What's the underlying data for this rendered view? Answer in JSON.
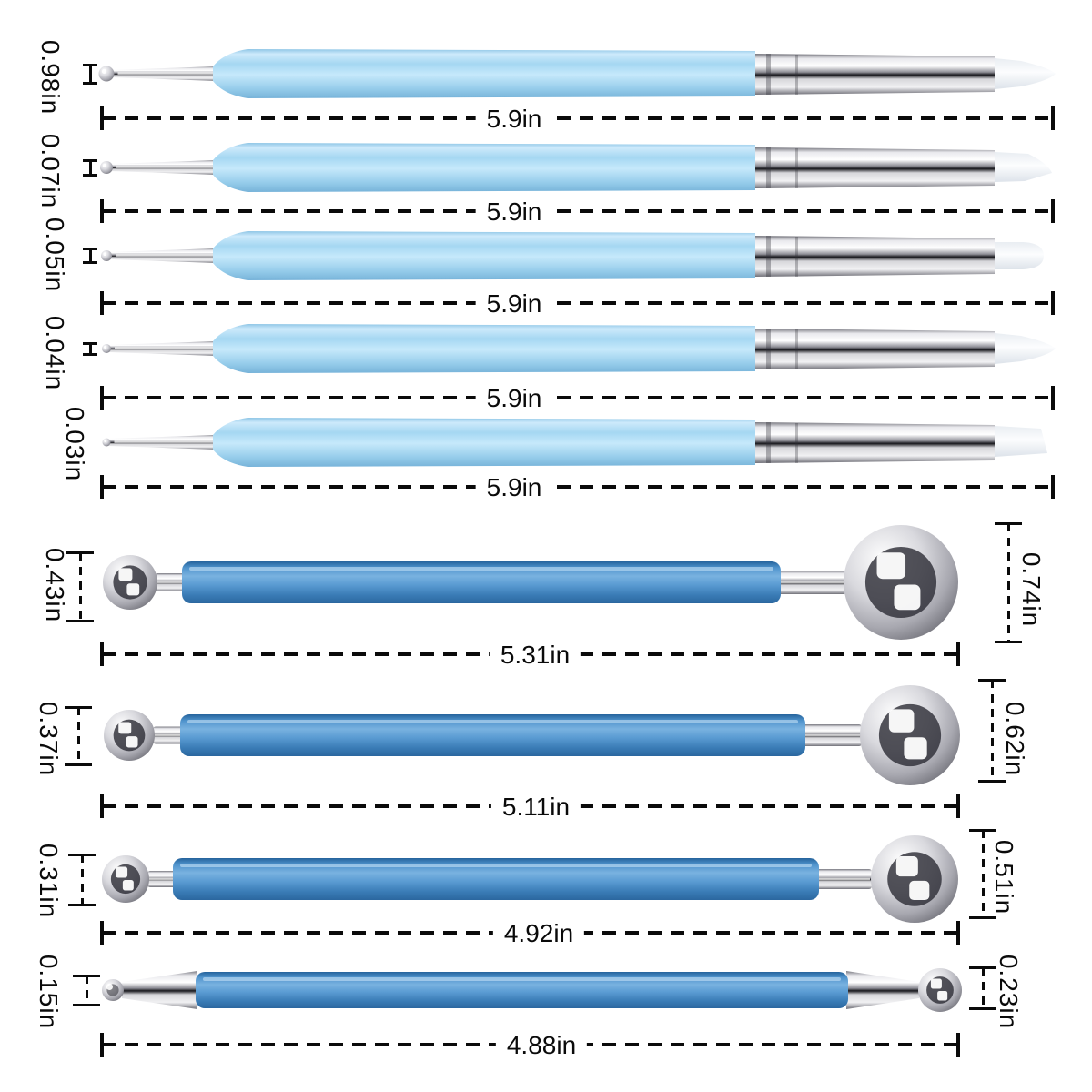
{
  "diagram": {
    "unit": "in",
    "dotting_pens": [
      {
        "tip_diameter": "0.98in",
        "length": "5.9in"
      },
      {
        "tip_diameter": "0.07in",
        "length": "5.9in"
      },
      {
        "tip_diameter": "0.05in",
        "length": "5.9in"
      },
      {
        "tip_diameter": "0.04in",
        "length": "5.9in"
      },
      {
        "tip_diameter": "0.03in",
        "length": "5.9in"
      }
    ],
    "ball_styluses": [
      {
        "small_ball_diameter": "0.43in",
        "large_ball_diameter": "0.74in",
        "length": "5.31in"
      },
      {
        "small_ball_diameter": "0.37in",
        "large_ball_diameter": "0.62in",
        "length": "5.11in"
      },
      {
        "small_ball_diameter": "0.31in",
        "large_ball_diameter": "0.51in",
        "length": "4.92in"
      },
      {
        "small_ball_diameter": "0.15in",
        "large_ball_diameter": "0.23in",
        "length": "4.88in"
      }
    ]
  },
  "colors": {
    "background": "#ffffff",
    "pen_body_blue": "#a9d9f3",
    "handle_steel_blue": "#4e93cc",
    "metal_silver": "#c9c9cf",
    "silicone_white": "#f2f5f8",
    "dimension_black": "#0a0a0a"
  }
}
